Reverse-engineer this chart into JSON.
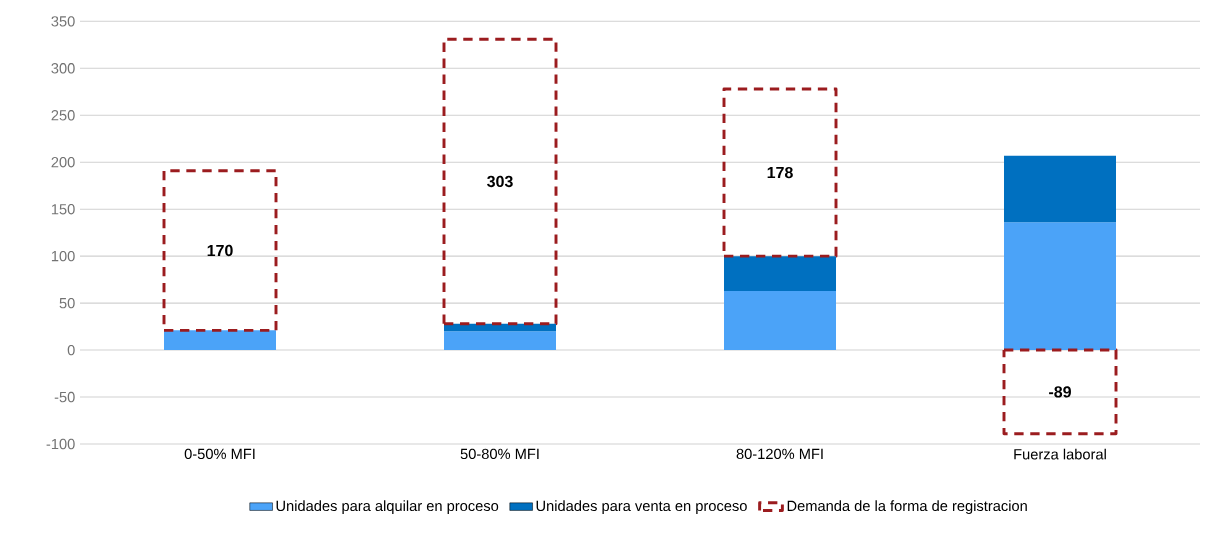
{
  "chart_data": {
    "type": "bar",
    "stacked": true,
    "categories": [
      "0-50% MFI",
      "50-80% MFI",
      "80-120% MFI",
      "Fuerza laboral"
    ],
    "series": [
      {
        "name": "Unidades para alquilar en proceso",
        "color": "#4ba3f8",
        "values": [
          21,
          20,
          63,
          136
        ]
      },
      {
        "name": "Unidades para venta en proceso",
        "color": "#0070c0",
        "values": [
          0,
          8,
          37,
          71
        ]
      },
      {
        "name": "Demanda de la forma de registracion",
        "color": "#9b1c1f",
        "line_style": "dashed",
        "base": [
          21,
          28,
          100,
          0
        ],
        "values": [
          170,
          303,
          178,
          -89
        ],
        "value_labels": [
          "170",
          "303",
          "178",
          "-89"
        ]
      }
    ],
    "ylim": [
      -100,
      350
    ],
    "yticks": [
      -100,
      -50,
      0,
      50,
      100,
      150,
      200,
      250,
      300,
      350
    ],
    "grid": "y",
    "legend": "bottom"
  }
}
